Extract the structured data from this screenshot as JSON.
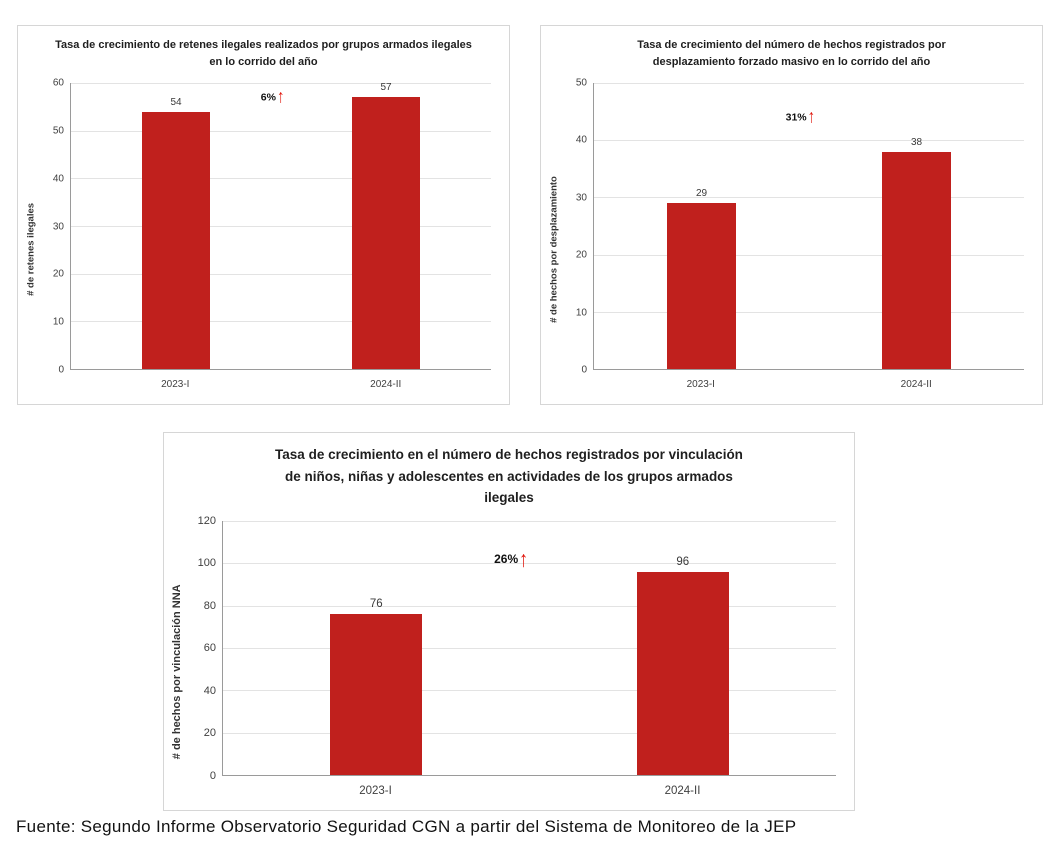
{
  "colors": {
    "bar": "#c0201d",
    "arrow": "#e01309",
    "gridline": "#e3e3e3",
    "axis": "#9a9a9a",
    "panel_border": "#d6d6d6"
  },
  "footer": {
    "source": "Fuente: Segundo Informe Observatorio Seguridad CGN a partir del Sistema de Monitoreo de la JEP"
  },
  "chart_data": [
    {
      "type": "bar",
      "title": "Tasa de crecimiento de retenes ilegales realizados por grupos armados ilegales en lo corrido del año",
      "ylabel": "# de retenes ilegales",
      "xlabel": "",
      "categories": [
        "2023-I",
        "2024-II"
      ],
      "values": [
        54,
        57
      ],
      "ylim": [
        0,
        60
      ],
      "ystep": 10,
      "grid": true,
      "legend": "none",
      "bar_width_pct": 16,
      "annotation": {
        "text": "6%",
        "y_value": 57,
        "x_pct": 48
      }
    },
    {
      "type": "bar",
      "title": "Tasa de crecimiento del número de hechos registrados por desplazamiento forzado masivo en lo corrido del año",
      "ylabel": "# de hechos por desplazamiento",
      "xlabel": "",
      "categories": [
        "2023-I",
        "2024-II"
      ],
      "values": [
        29,
        38
      ],
      "ylim": [
        0,
        50
      ],
      "ystep": 10,
      "grid": true,
      "legend": "none",
      "bar_width_pct": 16,
      "annotation": {
        "text": "31%",
        "y_value": 44,
        "x_pct": 48
      }
    },
    {
      "type": "bar",
      "title": "Tasa de crecimiento en el número de hechos registrados por vinculación de niños, niñas y adolescentes en actividades de los grupos armados ilegales",
      "ylabel": "# de hechos por vinculación NNA",
      "xlabel": "",
      "categories": [
        "2023-I",
        "2024-II"
      ],
      "values": [
        76,
        96
      ],
      "ylim": [
        0,
        120
      ],
      "ystep": 20,
      "grid": true,
      "legend": "none",
      "bar_width_pct": 15,
      "annotation": {
        "text": "26%",
        "y_value": 102,
        "x_pct": 47
      }
    }
  ]
}
